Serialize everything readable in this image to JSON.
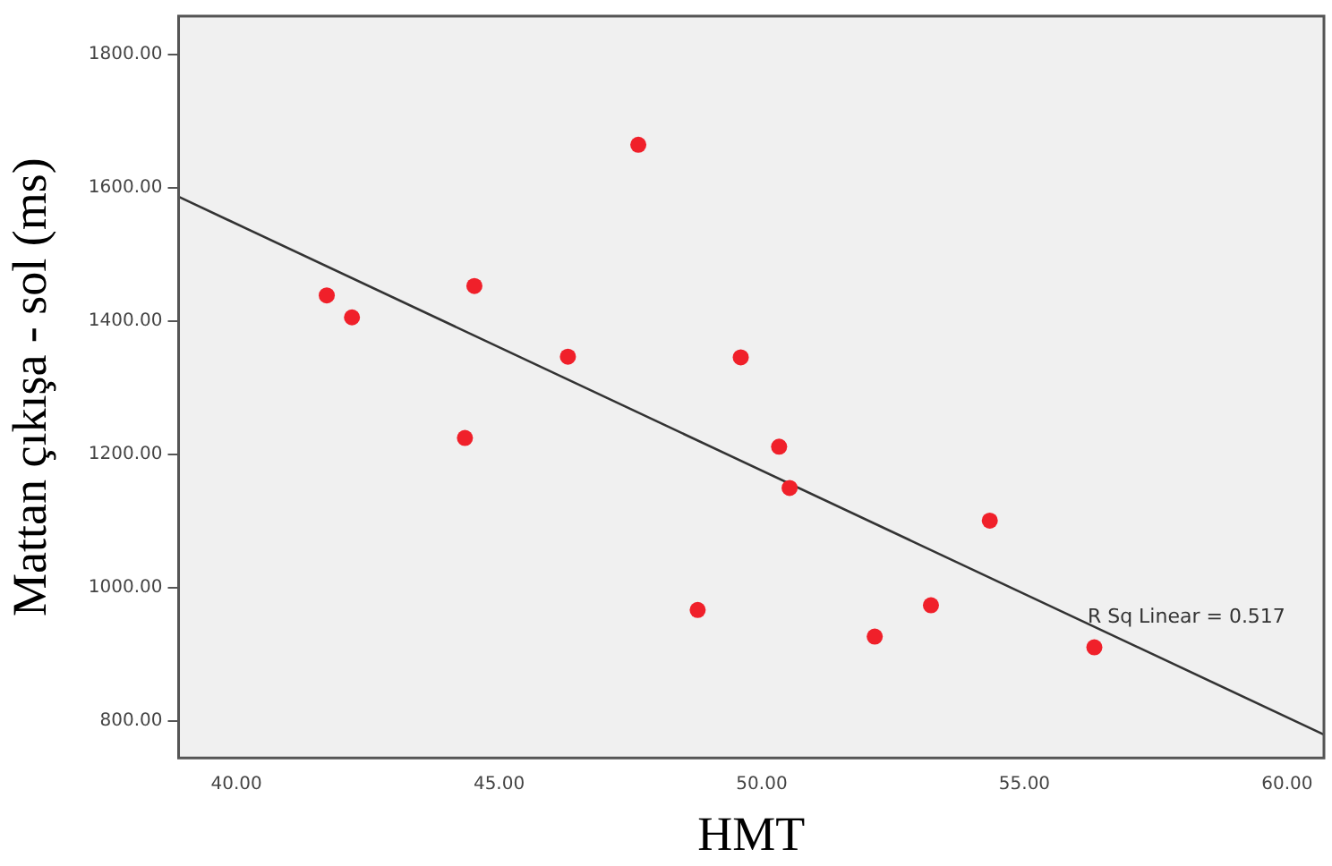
{
  "chart_data": {
    "type": "scatter",
    "xlabel": "HMT",
    "ylabel": "Mattan çıkışa - sol (ms)",
    "xlim": [
      38.9,
      60.7
    ],
    "ylim": [
      745,
      1858
    ],
    "xticks": [
      {
        "value": 40,
        "label": "40.00"
      },
      {
        "value": 45,
        "label": "45.00"
      },
      {
        "value": 50,
        "label": "50.00"
      },
      {
        "value": 55,
        "label": "55.00"
      },
      {
        "value": 60,
        "label": "60.00"
      }
    ],
    "yticks": [
      {
        "value": 800,
        "label": "800.00"
      },
      {
        "value": 1000,
        "label": "1000.00"
      },
      {
        "value": 1200,
        "label": "1200.00"
      },
      {
        "value": 1400,
        "label": "1400.00"
      },
      {
        "value": 1600,
        "label": "1600.00"
      },
      {
        "value": 1800,
        "label": "1800.00"
      }
    ],
    "grid": false,
    "legend": false,
    "marker": "circle",
    "series": [
      {
        "type": "scatter",
        "color": "#f0202a",
        "x": [
          41.72,
          42.2,
          44.53,
          44.35,
          46.31,
          47.65,
          48.78,
          49.6,
          50.33,
          50.53,
          54.34,
          53.22,
          52.15,
          56.33
        ],
        "values": [
          1439,
          1406,
          1453,
          1225,
          1347,
          1665,
          967,
          1346,
          1212,
          1150,
          1101,
          974,
          927,
          911
        ]
      },
      {
        "type": "line",
        "color": "#333333",
        "marker": "none",
        "line_style": "solid",
        "x": [
          38.9,
          60.7
        ],
        "values": [
          1587,
          780
        ]
      }
    ],
    "annotations": [
      {
        "text": "R Sq Linear = 0.517",
        "x": 56.2,
        "y": 955
      }
    ]
  }
}
